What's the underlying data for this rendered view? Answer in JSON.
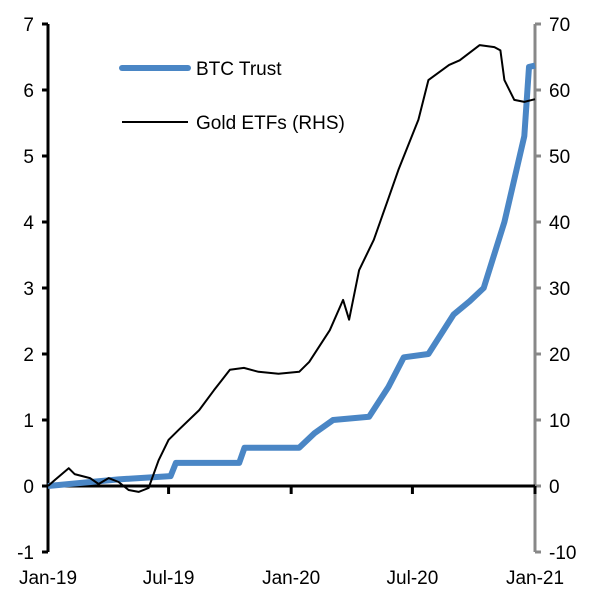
{
  "chart_data": {
    "type": "line",
    "title": "",
    "xlabel": "",
    "ylabel": "",
    "x_ticks": [
      "Jan-19",
      "Jul-19",
      "Jan-20",
      "Jul-20",
      "Jan-21"
    ],
    "x_tick_dates": [
      "2019-01-01",
      "2019-07-01",
      "2020-01-01",
      "2020-07-01",
      "2021-01-01"
    ],
    "xlim": [
      "2019-01-01",
      "2021-01-01"
    ],
    "ylim_left": [
      -1,
      7
    ],
    "y_ticks_left": [
      "-1",
      "0",
      "1",
      "2",
      "3",
      "4",
      "5",
      "6",
      "7"
    ],
    "ylim_right": [
      -10,
      70
    ],
    "y_ticks_right": [
      "-10",
      "0",
      "10",
      "20",
      "30",
      "40",
      "50",
      "60",
      "70"
    ],
    "grid": false,
    "legend_position": "top-left",
    "series": [
      {
        "name": "BTC Trust",
        "axis": "left",
        "color": "#4a86c5",
        "points": [
          [
            "2019-01-01",
            0
          ],
          [
            "2019-04-17",
            0.1
          ],
          [
            "2019-07-04",
            0.15
          ],
          [
            "2019-07-12",
            0.35
          ],
          [
            "2019-10-15",
            0.35
          ],
          [
            "2019-10-23",
            0.58
          ],
          [
            "2020-01-13",
            0.58
          ],
          [
            "2020-02-05",
            0.8
          ],
          [
            "2020-03-04",
            1.0
          ],
          [
            "2020-04-27",
            1.05
          ],
          [
            "2020-05-26",
            1.5
          ],
          [
            "2020-06-18",
            1.95
          ],
          [
            "2020-07-25",
            2.0
          ],
          [
            "2020-09-01",
            2.6
          ],
          [
            "2020-09-25",
            2.8
          ],
          [
            "2020-10-16",
            3.0
          ],
          [
            "2020-11-16",
            4.0
          ],
          [
            "2020-12-16",
            5.3
          ],
          [
            "2020-12-23",
            6.35
          ],
          [
            "2021-01-01",
            6.37
          ]
        ]
      },
      {
        "name": "Gold ETFs (RHS)",
        "axis": "right",
        "color": "#000000",
        "points": [
          [
            "2019-01-01",
            0
          ],
          [
            "2019-01-11",
            0.9
          ],
          [
            "2019-02-01",
            2.7
          ],
          [
            "2019-02-10",
            1.8
          ],
          [
            "2019-03-05",
            1.2
          ],
          [
            "2019-03-18",
            0.3
          ],
          [
            "2019-04-02",
            1.2
          ],
          [
            "2019-04-17",
            0.6
          ],
          [
            "2019-05-02",
            -0.6
          ],
          [
            "2019-05-17",
            -0.9
          ],
          [
            "2019-06-01",
            -0.3
          ],
          [
            "2019-06-16",
            3.9
          ],
          [
            "2019-07-01",
            7
          ],
          [
            "2019-07-16",
            8.5
          ],
          [
            "2019-08-16",
            11.5
          ],
          [
            "2019-09-07",
            14.5
          ],
          [
            "2019-10-01",
            17.6
          ],
          [
            "2019-10-22",
            17.9
          ],
          [
            "2019-11-13",
            17.3
          ],
          [
            "2019-12-13",
            17
          ],
          [
            "2020-01-13",
            17.3
          ],
          [
            "2020-01-28",
            18.8
          ],
          [
            "2020-02-28",
            23.6
          ],
          [
            "2020-03-19",
            28.2
          ],
          [
            "2020-03-28",
            25.2
          ],
          [
            "2020-04-12",
            32.7
          ],
          [
            "2020-05-04",
            37.3
          ],
          [
            "2020-05-25",
            43.3
          ],
          [
            "2020-06-10",
            47.9
          ],
          [
            "2020-07-10",
            55.5
          ],
          [
            "2020-07-25",
            61.5
          ],
          [
            "2020-08-25",
            63.8
          ],
          [
            "2020-09-10",
            64.5
          ],
          [
            "2020-10-10",
            66.8
          ],
          [
            "2020-11-01",
            66.5
          ],
          [
            "2020-11-10",
            66
          ],
          [
            "2020-11-16",
            61.5
          ],
          [
            "2020-12-01",
            58.5
          ],
          [
            "2020-12-16",
            58.2
          ],
          [
            "2021-01-01",
            58.6
          ]
        ]
      }
    ]
  }
}
